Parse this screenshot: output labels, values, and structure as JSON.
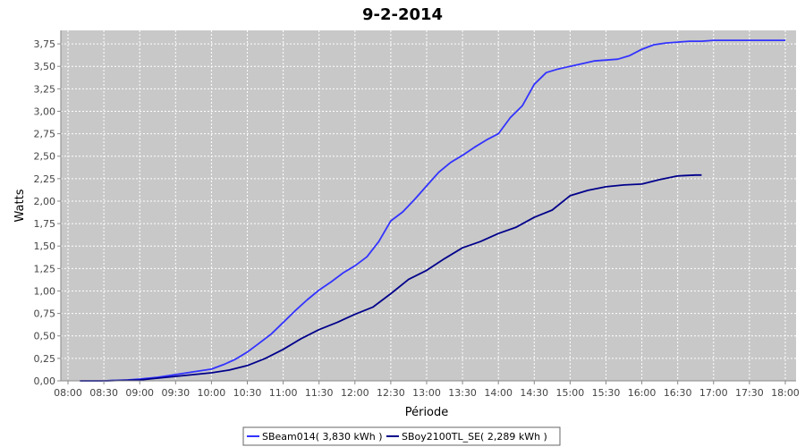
{
  "chart_data": {
    "type": "line",
    "title": "9-2-2014",
    "xlabel": "Période",
    "ylabel": "Watts",
    "x_ticks": [
      "08:00",
      "08:30",
      "09:00",
      "09:30",
      "10:00",
      "10:30",
      "11:00",
      "11:30",
      "12:00",
      "12:30",
      "13:00",
      "13:30",
      "14:00",
      "14:30",
      "15:00",
      "15:30",
      "16:00",
      "16:30",
      "17:00",
      "17:30",
      "18:00"
    ],
    "y_ticks": [
      "0,00",
      "0,25",
      "0,50",
      "0,75",
      "1,00",
      "1,25",
      "1,50",
      "1,75",
      "2,00",
      "2,25",
      "2,50",
      "2,75",
      "3,00",
      "3,25",
      "3,50",
      "3,75"
    ],
    "xlim": [
      "08:00",
      "18:00"
    ],
    "ylim": [
      0,
      3.9
    ],
    "grid": true,
    "legend_position": "bottom",
    "colors": {
      "plot_bg": "#c8c8c8",
      "grid": "#ffffff"
    },
    "series": [
      {
        "name": "SBeam014( 3,830 kWh )",
        "color": "#3333ff",
        "x": [
          "08:10",
          "08:30",
          "08:50",
          "09:00",
          "09:15",
          "09:30",
          "09:45",
          "10:00",
          "10:10",
          "10:20",
          "10:30",
          "10:40",
          "10:50",
          "11:00",
          "11:10",
          "11:20",
          "11:30",
          "11:40",
          "11:50",
          "12:00",
          "12:10",
          "12:20",
          "12:30",
          "12:40",
          "12:50",
          "13:00",
          "13:10",
          "13:20",
          "13:30",
          "13:40",
          "13:50",
          "14:00",
          "14:10",
          "14:20",
          "14:30",
          "14:40",
          "14:50",
          "15:00",
          "15:10",
          "15:20",
          "15:30",
          "15:40",
          "15:50",
          "16:00",
          "16:10",
          "16:20",
          "16:30",
          "16:40",
          "16:50",
          "17:00",
          "17:30",
          "18:00"
        ],
        "values": [
          0.0,
          0.0,
          0.01,
          0.02,
          0.04,
          0.07,
          0.1,
          0.13,
          0.18,
          0.24,
          0.32,
          0.42,
          0.52,
          0.65,
          0.78,
          0.9,
          1.01,
          1.1,
          1.2,
          1.28,
          1.38,
          1.55,
          1.78,
          1.88,
          2.02,
          2.17,
          2.32,
          2.43,
          2.51,
          2.6,
          2.68,
          2.75,
          2.93,
          3.06,
          3.3,
          3.43,
          3.47,
          3.5,
          3.53,
          3.56,
          3.57,
          3.58,
          3.62,
          3.69,
          3.74,
          3.76,
          3.77,
          3.78,
          3.78,
          3.79,
          3.79,
          3.79
        ]
      },
      {
        "name": "SBoy2100TL_SE( 2,289 kWh )",
        "color": "#00008b",
        "x": [
          "08:10",
          "08:30",
          "09:00",
          "09:15",
          "09:30",
          "09:45",
          "10:00",
          "10:15",
          "10:30",
          "10:45",
          "11:00",
          "11:15",
          "11:30",
          "11:45",
          "12:00",
          "12:15",
          "12:30",
          "12:45",
          "13:00",
          "13:15",
          "13:30",
          "13:45",
          "14:00",
          "14:15",
          "14:30",
          "14:45",
          "15:00",
          "15:15",
          "15:30",
          "15:45",
          "16:00",
          "16:15",
          "16:30",
          "16:45",
          "16:50"
        ],
        "values": [
          0.0,
          0.0,
          0.01,
          0.03,
          0.05,
          0.07,
          0.09,
          0.12,
          0.17,
          0.25,
          0.35,
          0.47,
          0.57,
          0.65,
          0.74,
          0.82,
          0.97,
          1.13,
          1.23,
          1.36,
          1.48,
          1.55,
          1.64,
          1.71,
          1.82,
          1.9,
          2.06,
          2.12,
          2.16,
          2.18,
          2.19,
          2.24,
          2.28,
          2.29,
          2.29
        ]
      }
    ]
  }
}
